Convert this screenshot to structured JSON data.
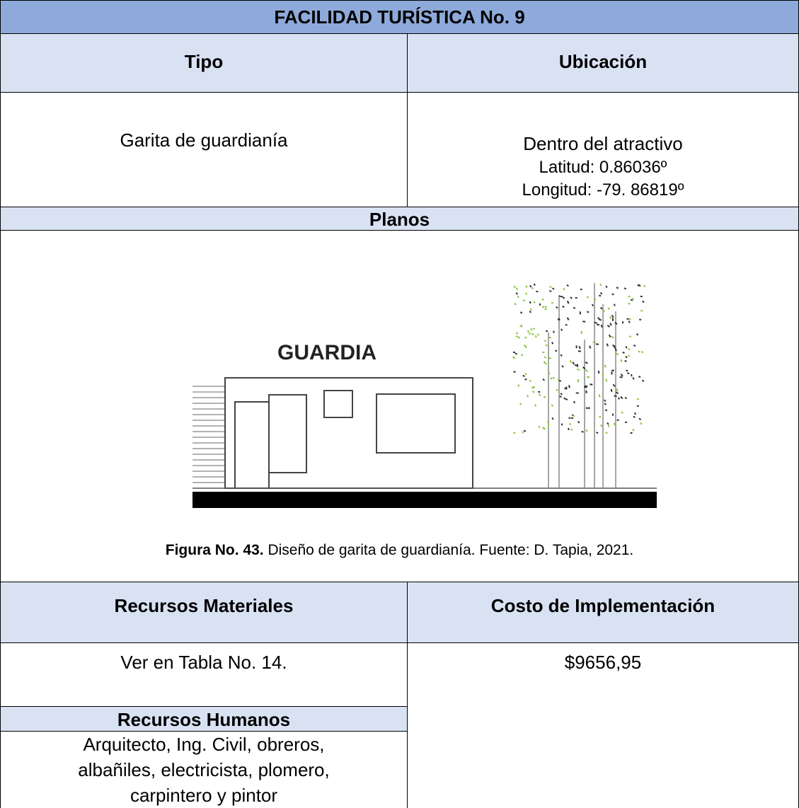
{
  "header": {
    "title": "FACILIDAD TURÍSTICA No. 9"
  },
  "table": {
    "tipo_header": "Tipo",
    "ubicacion_header": "Ubicación",
    "tipo": "Garita de guardianía",
    "ubicacion": [
      "Dentro del atractivo",
      "Latitud: 0.86036º",
      "Longitud: -79. 86819º"
    ],
    "planos_header": "Planos",
    "figure_label": "GUARDIA",
    "caption_label": "Figura No. 43.",
    "caption_text": "Diseño de garita de guardianía. Fuente: D. Tapia, 2021.",
    "materiales_header": "Recursos Materiales",
    "costo_header": "Costo de Implementación",
    "materiales": "Ver en Tabla No. 14.",
    "costo": "$9656,95",
    "humanos_header": "Recursos Humanos",
    "humanos": [
      "Arquitecto, Ing. Civil, obreros,",
      "albañiles, electricista, plomero,",
      "carpintero y pintor"
    ]
  }
}
